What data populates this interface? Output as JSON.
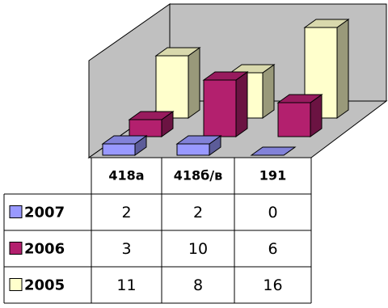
{
  "chart_data": {
    "type": "bar",
    "bar_style": "3d",
    "categories": [
      "418а",
      "418б/в",
      "191"
    ],
    "series": [
      {
        "name": "2007",
        "color": "#9999ff",
        "values": [
          2,
          2,
          0
        ]
      },
      {
        "name": "2006",
        "color": "#b3206e",
        "values": [
          3,
          10,
          6
        ]
      },
      {
        "name": "2005",
        "color": "#ffffcc",
        "values": [
          11,
          8,
          16
        ]
      }
    ]
  }
}
